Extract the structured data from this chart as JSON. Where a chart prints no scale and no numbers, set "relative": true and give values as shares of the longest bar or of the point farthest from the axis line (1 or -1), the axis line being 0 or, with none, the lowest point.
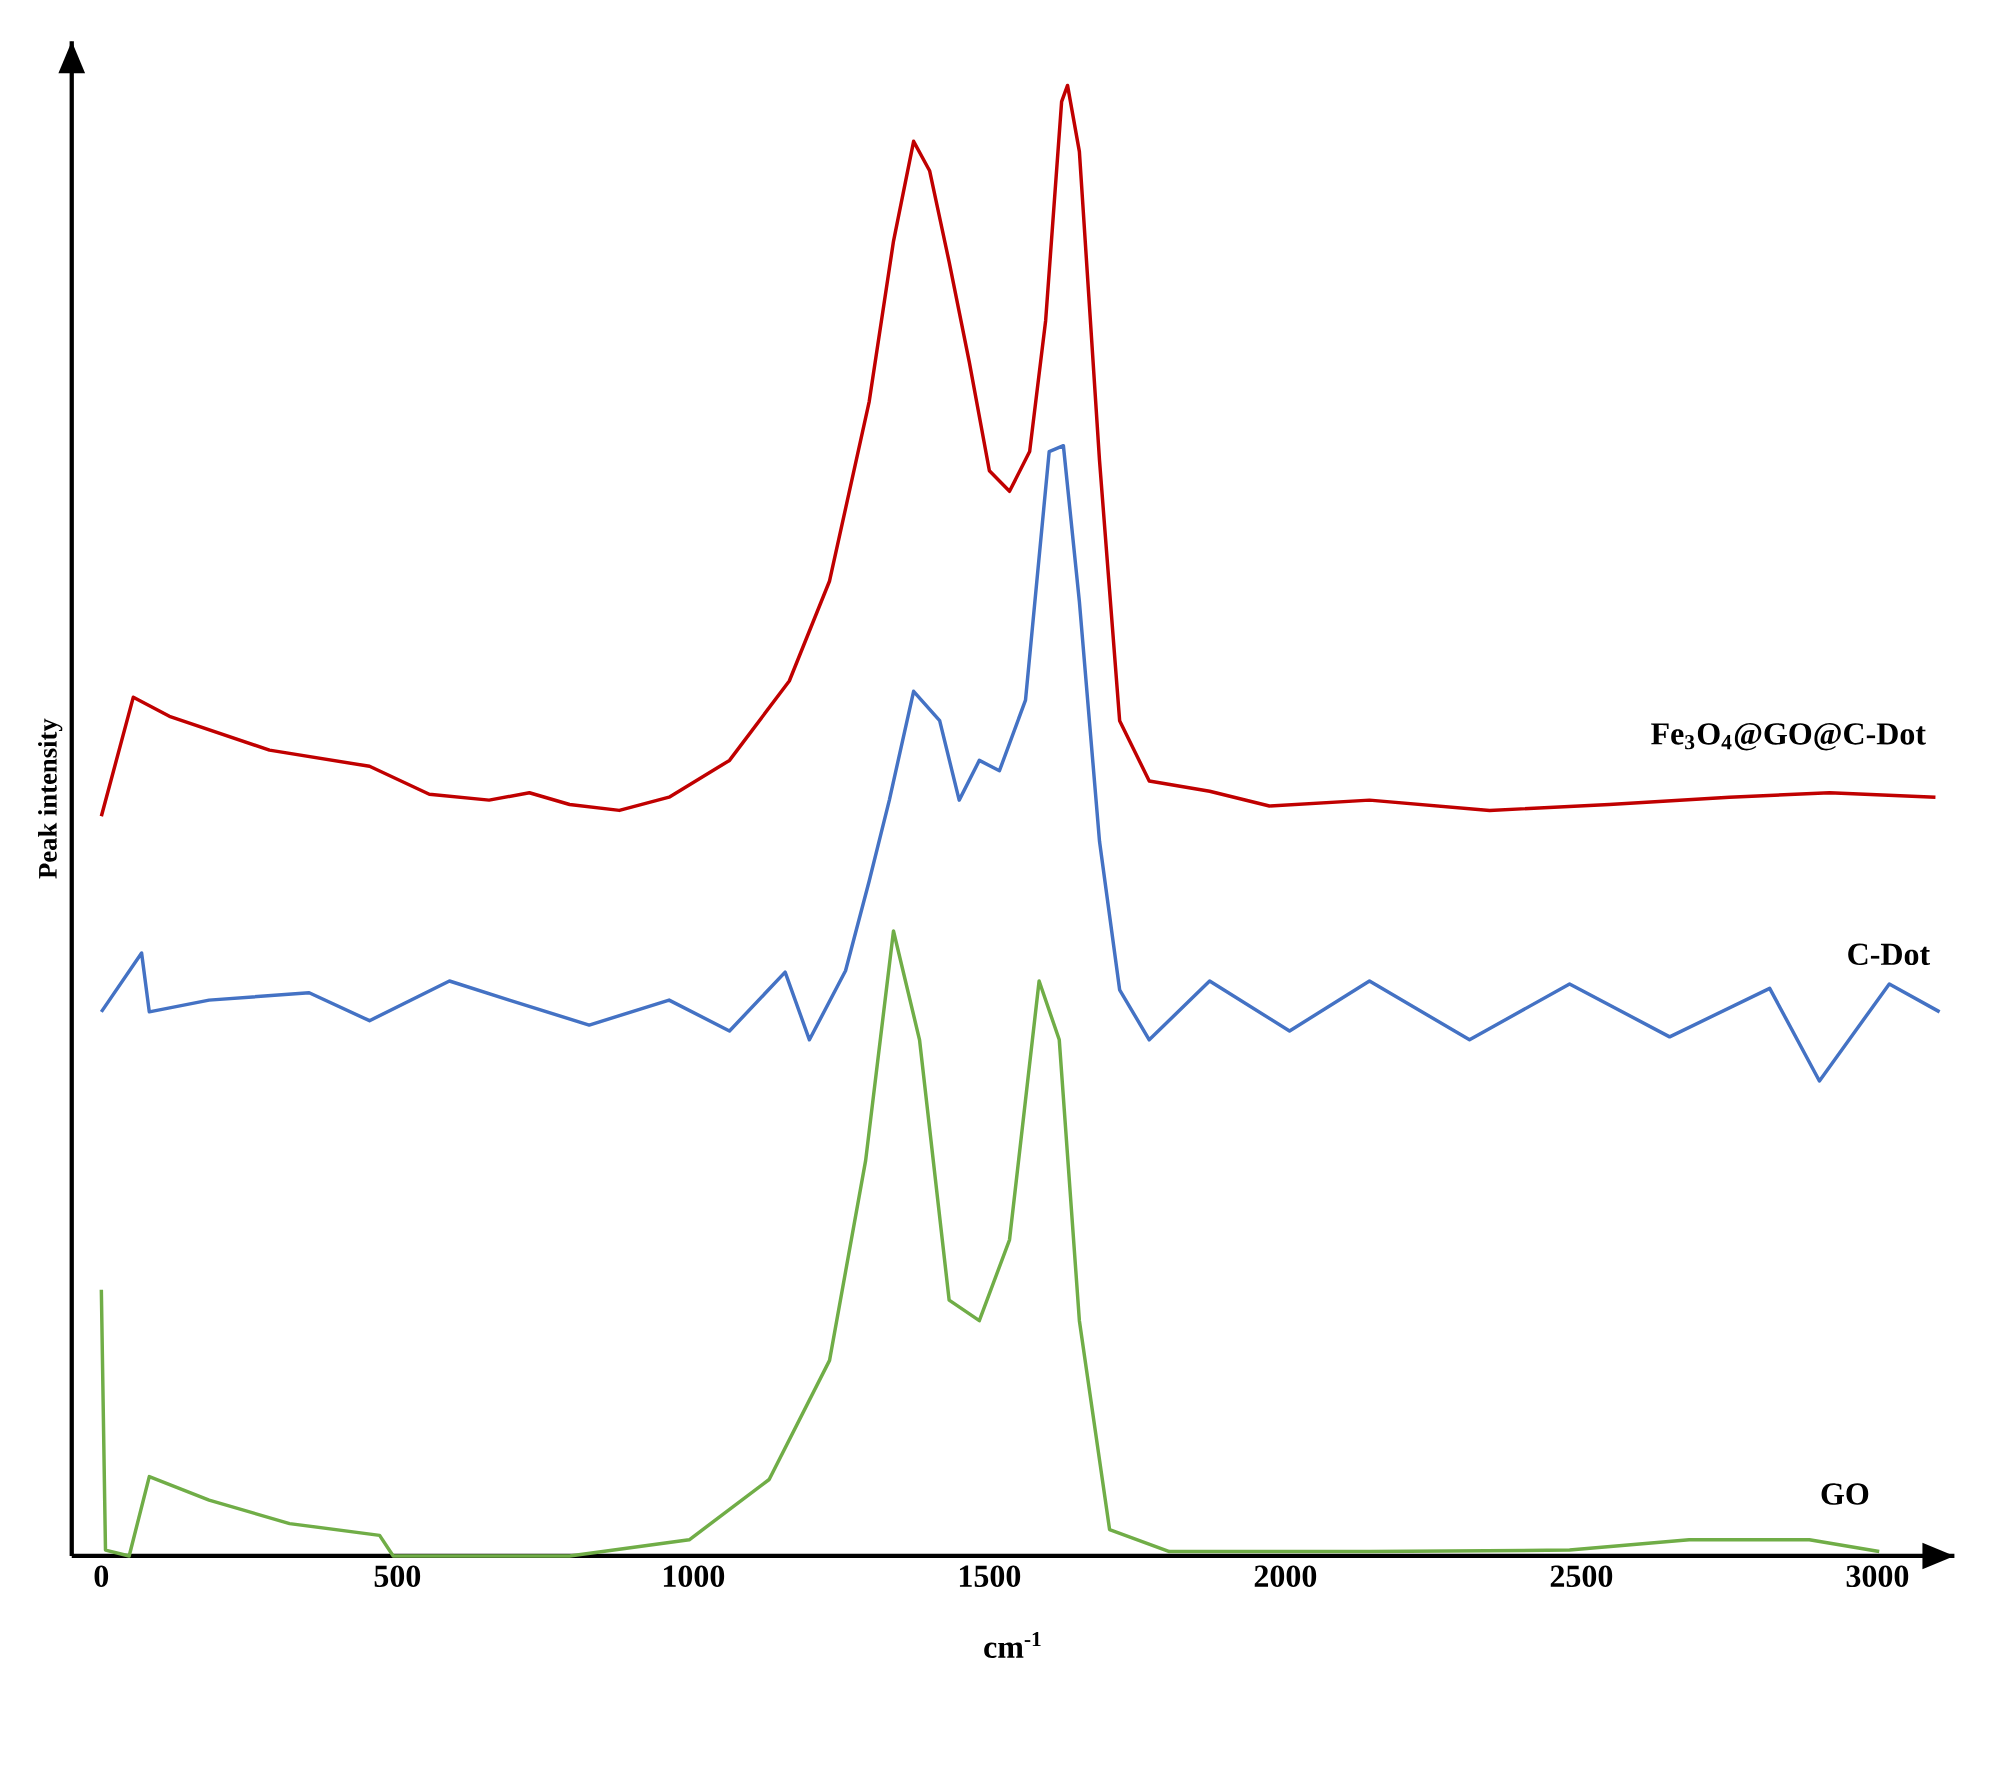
{
  "chart_data": {
    "type": "line",
    "relative": true,
    "xlabel": "cm$^{-1}$",
    "ylabel": "Peak intensity",
    "xlim": [
      -50,
      3130
    ],
    "xticks": [
      0,
      500,
      1000,
      1500,
      2000,
      2500,
      3000
    ],
    "series": [
      {
        "name": "Fe$_{3}$O$_{4}$@GO@C-Dot",
        "color": "#c00000",
        "x": [
          0,
          54,
          115,
          284,
          453,
          554,
          655,
          723,
          791,
          875,
          959,
          1061,
          1162,
          1230,
          1297,
          1338,
          1372,
          1399,
          1432,
          1466,
          1500,
          1534,
          1568,
          1595,
          1622,
          1632,
          1652,
          1686,
          1720,
          1770,
          1872,
          1973,
          2142,
          2345,
          2547,
          2750,
          2919,
          3098
        ],
        "values": [
          0.503,
          0.584,
          0.571,
          0.548,
          0.537,
          0.518,
          0.514,
          0.519,
          0.511,
          0.507,
          0.516,
          0.541,
          0.595,
          0.663,
          0.785,
          0.894,
          0.962,
          0.942,
          0.88,
          0.812,
          0.738,
          0.724,
          0.751,
          0.84,
          0.989,
          1.0,
          0.955,
          0.745,
          0.568,
          0.527,
          0.52,
          0.51,
          0.514,
          0.507,
          0.511,
          0.516,
          0.519,
          0.516
        ]
      },
      {
        "name": "C-Dot",
        "color": "#4472c4",
        "x": [
          0,
          68,
          81,
          182,
          351,
          453,
          588,
          689,
          824,
          959,
          1061,
          1155,
          1196,
          1257,
          1297,
          1331,
          1372,
          1416,
          1449,
          1483,
          1517,
          1561,
          1601,
          1625,
          1652,
          1686,
          1720,
          1770,
          1872,
          2007,
          2142,
          2311,
          2480,
          2649,
          2818,
          2902,
          3020,
          3105
        ],
        "values": [
          0.37,
          0.41,
          0.37,
          0.378,
          0.383,
          0.364,
          0.391,
          0.378,
          0.361,
          0.378,
          0.357,
          0.397,
          0.351,
          0.398,
          0.459,
          0.514,
          0.588,
          0.568,
          0.514,
          0.541,
          0.534,
          0.582,
          0.751,
          0.755,
          0.649,
          0.486,
          0.385,
          0.351,
          0.391,
          0.357,
          0.391,
          0.351,
          0.389,
          0.353,
          0.386,
          0.323,
          0.389,
          0.37
        ]
      },
      {
        "name": "GO",
        "color": "#70ad47",
        "x": [
          0,
          7,
          47,
          81,
          182,
          318,
          470,
          493,
          791,
          993,
          1128,
          1230,
          1291,
          1338,
          1382,
          1432,
          1483,
          1534,
          1584,
          1618,
          1652,
          1703,
          1804,
          2142,
          2480,
          2682,
          2885,
          3003
        ],
        "values": [
          0.181,
          0.004,
          0,
          0.054,
          0.038,
          0.022,
          0.014,
          0,
          0,
          0.011,
          0.052,
          0.133,
          0.269,
          0.425,
          0.351,
          0.174,
          0.16,
          0.215,
          0.391,
          0.351,
          0.16,
          0.018,
          0.003,
          0.003,
          0.004,
          0.011,
          0.011,
          0.003
        ]
      }
    ]
  }
}
